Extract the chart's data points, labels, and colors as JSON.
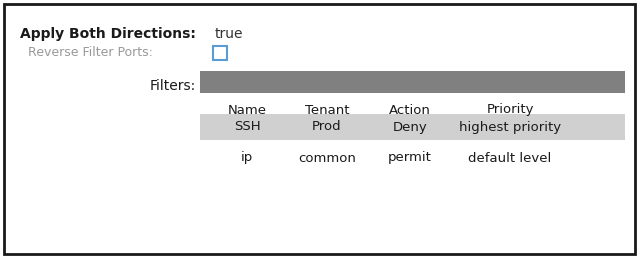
{
  "bg_color": "#ffffff",
  "border_color": "#1a1a1a",
  "label_color": "#1a1a1a",
  "gray_label_color": "#999999",
  "blue_checkbox_color": "#5b9bd5",
  "true_color": "#333333",
  "apply_label": "Apply Both Directions:",
  "apply_value": "true",
  "reverse_label": "Reverse Filter Ports:",
  "filters_label": "Filters:",
  "filters_bar_color": "#808080",
  "col_headers": [
    "Name",
    "Tenant",
    "Action",
    "Priority"
  ],
  "row1": [
    "SSH",
    "Prod",
    "Deny",
    "highest priority"
  ],
  "row2": [
    "ip",
    "common",
    "permit",
    "default level"
  ],
  "row1_bg": "#d0d0d0",
  "font_size_header": 9.5,
  "font_size_body": 9.5
}
